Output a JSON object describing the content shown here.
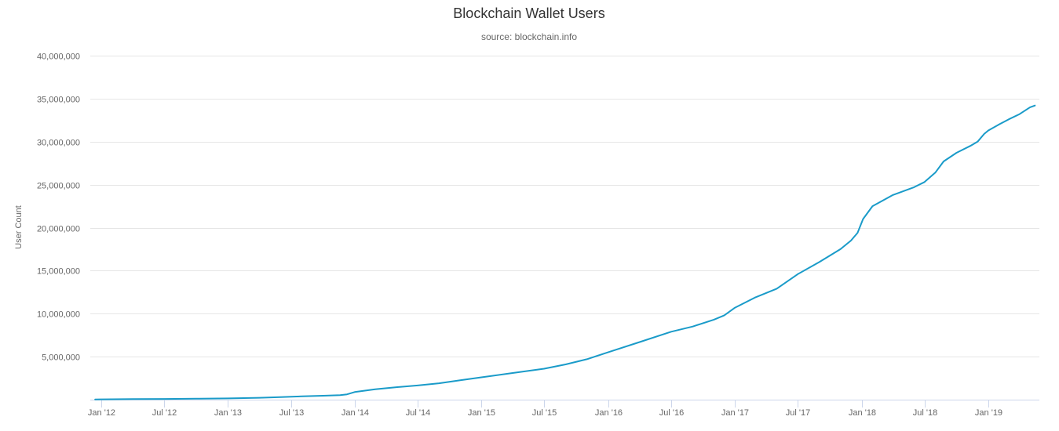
{
  "chart_data": {
    "type": "line",
    "title": "Blockchain Wallet Users",
    "subtitle": "source: blockchain.info",
    "xlabel": "",
    "ylabel": "User Count",
    "ylim": [
      0,
      40000000
    ],
    "yticks": [
      0,
      5000000,
      10000000,
      15000000,
      20000000,
      25000000,
      30000000,
      35000000,
      40000000
    ],
    "ytick_labels": [
      "",
      "5,000,000",
      "10,000,000",
      "15,000,000",
      "20,000,000",
      "25,000,000",
      "30,000,000",
      "35,000,000",
      "40,000,000"
    ],
    "xlim": [
      "2011-12-01",
      "2019-05-28"
    ],
    "xticks": [
      {
        "date": "2012-01-01",
        "label": "Jan '12"
      },
      {
        "date": "2012-07-01",
        "label": "Jul '12"
      },
      {
        "date": "2013-01-01",
        "label": "Jan '13"
      },
      {
        "date": "2013-07-01",
        "label": "Jul '13"
      },
      {
        "date": "2014-01-01",
        "label": "Jan '14"
      },
      {
        "date": "2014-07-01",
        "label": "Jul '14"
      },
      {
        "date": "2015-01-01",
        "label": "Jan '15"
      },
      {
        "date": "2015-07-01",
        "label": "Jul '15"
      },
      {
        "date": "2016-01-01",
        "label": "Jan '16"
      },
      {
        "date": "2016-07-01",
        "label": "Jul '16"
      },
      {
        "date": "2017-01-01",
        "label": "Jan '17"
      },
      {
        "date": "2017-07-01",
        "label": "Jul '17"
      },
      {
        "date": "2018-01-01",
        "label": "Jan '18"
      },
      {
        "date": "2018-07-01",
        "label": "Jul '18"
      },
      {
        "date": "2019-01-01",
        "label": "Jan '19"
      }
    ],
    "grid": true,
    "series": [
      {
        "name": "User Count",
        "color": "#1a9bc9",
        "x": [
          "2011-12-15",
          "2012-01-01",
          "2012-04-01",
          "2012-07-01",
          "2012-10-01",
          "2013-01-01",
          "2013-04-01",
          "2013-06-01",
          "2013-08-01",
          "2013-10-01",
          "2013-11-20",
          "2013-12-10",
          "2014-01-01",
          "2014-03-01",
          "2014-05-01",
          "2014-07-01",
          "2014-09-01",
          "2014-11-01",
          "2015-01-01",
          "2015-04-01",
          "2015-07-01",
          "2015-09-01",
          "2015-11-01",
          "2016-01-01",
          "2016-04-01",
          "2016-07-01",
          "2016-09-01",
          "2016-11-01",
          "2016-12-01",
          "2017-01-01",
          "2017-03-01",
          "2017-05-01",
          "2017-07-01",
          "2017-09-01",
          "2017-11-01",
          "2017-12-01",
          "2017-12-20",
          "2018-01-05",
          "2018-02-01",
          "2018-04-01",
          "2018-06-01",
          "2018-07-01",
          "2018-08-01",
          "2018-08-25",
          "2018-10-01",
          "2018-11-10",
          "2018-12-01",
          "2018-12-20",
          "2019-01-01",
          "2019-02-01",
          "2019-03-01",
          "2019-04-01",
          "2019-05-01",
          "2019-05-15"
        ],
        "y": [
          30000,
          40000,
          60000,
          80000,
          110000,
          150000,
          220000,
          300000,
          380000,
          460000,
          520000,
          620000,
          880000,
          1200000,
          1450000,
          1650000,
          1900000,
          2250000,
          2600000,
          3100000,
          3600000,
          4100000,
          4700000,
          5500000,
          6700000,
          7900000,
          8500000,
          9300000,
          9800000,
          10700000,
          11900000,
          12900000,
          14600000,
          16000000,
          17500000,
          18500000,
          19400000,
          21000000,
          22500000,
          23800000,
          24700000,
          25300000,
          26400000,
          27700000,
          28700000,
          29500000,
          30000000,
          30900000,
          31300000,
          32000000,
          32600000,
          33200000,
          34000000,
          34200000
        ]
      }
    ]
  }
}
